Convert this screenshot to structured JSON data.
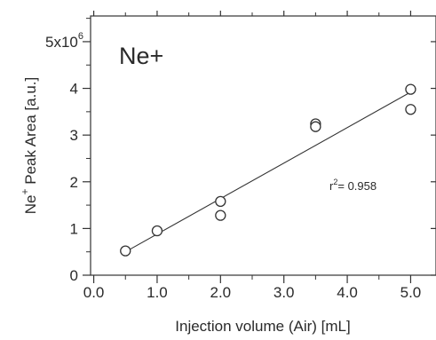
{
  "chart_data": {
    "type": "scatter",
    "annotation": "Ne+",
    "xlabel": "Injection volume (Air) [mL]",
    "ylabel_ion": "Ne",
    "ylabel_charge": "+",
    "ylabel_rest": " Peak Area [a.u.]",
    "xlim": [
      -0.05,
      5.4
    ],
    "ylim": [
      0,
      5.55
    ],
    "x_ticks": [
      0.0,
      1.0,
      2.0,
      3.0,
      4.0,
      5.0
    ],
    "x_tick_labels": [
      "0.0",
      "1.0",
      "2.0",
      "3.0",
      "4.0",
      "5.0"
    ],
    "y_ticks": [
      0,
      1,
      2,
      3,
      4,
      5
    ],
    "y_tick_labels": [
      "0",
      "1",
      "2",
      "3",
      "4",
      "5x10"
    ],
    "y_multiplier_exponent": "6",
    "points": [
      {
        "x": 0.5,
        "y": 0.52
      },
      {
        "x": 1.0,
        "y": 0.95
      },
      {
        "x": 2.0,
        "y": 1.58
      },
      {
        "x": 2.0,
        "y": 1.28
      },
      {
        "x": 3.5,
        "y": 3.24
      },
      {
        "x": 3.5,
        "y": 3.18
      },
      {
        "x": 5.0,
        "y": 3.98
      },
      {
        "x": 5.0,
        "y": 3.55
      }
    ],
    "fit_line": {
      "x1": 0.5,
      "y1": 0.5,
      "x2": 5.0,
      "y2": 3.92
    },
    "r2_base": "r",
    "r2_exp": "2",
    "r2_value": "= 0.958",
    "grid": false,
    "legend": "none"
  }
}
